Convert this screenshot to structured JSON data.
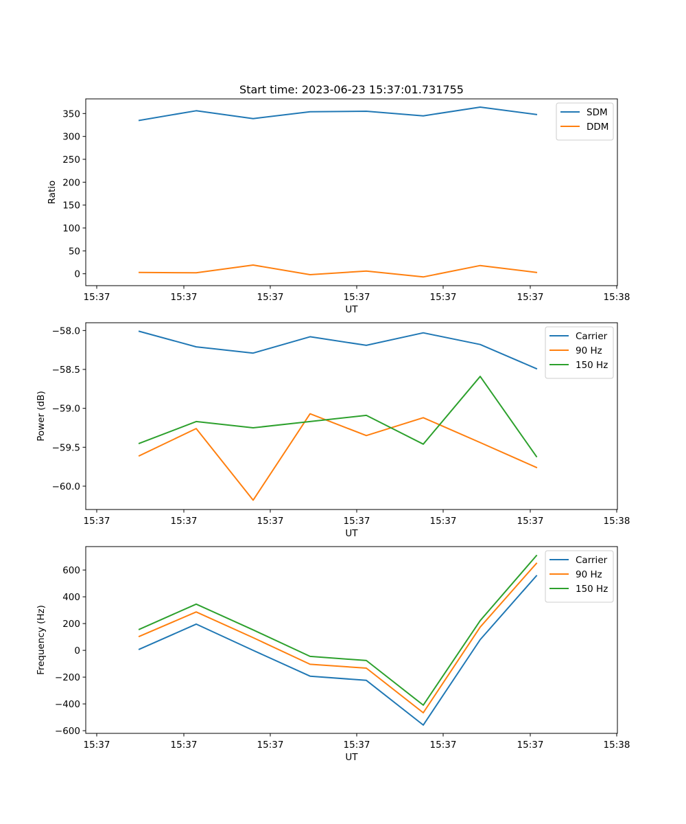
{
  "chart_data": [
    {
      "type": "line",
      "title": "Start time: 2023-06-23 15:37:01.731755",
      "xlabel": "UT",
      "ylabel": "Ratio",
      "x_tick_labels": [
        "15:37",
        "15:37",
        "15:37",
        "15:37",
        "15:37",
        "15:37",
        "15:38"
      ],
      "y_ticks": [
        0,
        50,
        100,
        150,
        200,
        250,
        300,
        350
      ],
      "ylim": [
        -26,
        382
      ],
      "grid": false,
      "legend_position": "upper right",
      "series": [
        {
          "name": "SDM",
          "color": "#1f77b4",
          "values": [
            335,
            356,
            339,
            354,
            355,
            345,
            364,
            348
          ]
        },
        {
          "name": "DDM",
          "color": "#ff7f0e",
          "values": [
            3,
            2,
            19,
            -2,
            6,
            -7,
            18,
            3
          ]
        }
      ]
    },
    {
      "type": "line",
      "title": "",
      "xlabel": "UT",
      "ylabel": "Power (dB)",
      "x_tick_labels": [
        "15:37",
        "15:37",
        "15:37",
        "15:37",
        "15:37",
        "15:37",
        "15:38"
      ],
      "y_ticks": [
        -58.0,
        -58.5,
        -59.0,
        -59.5,
        -60.0
      ],
      "y_tick_labels": [
        "−58.0",
        "−58.5",
        "−59.0",
        "−59.5",
        "−60.0"
      ],
      "ylim": [
        -60.3,
        -57.9
      ],
      "grid": false,
      "legend_position": "upper right",
      "series": [
        {
          "name": "Carrier",
          "color": "#1f77b4",
          "values": [
            -58.01,
            -58.21,
            -58.29,
            -58.08,
            -58.19,
            -58.03,
            -58.18,
            -58.49
          ]
        },
        {
          "name": "90 Hz",
          "color": "#ff7f0e",
          "values": [
            -59.61,
            -59.26,
            -60.18,
            -59.07,
            -59.35,
            -59.12,
            -59.44,
            -59.76
          ]
        },
        {
          "name": "150 Hz",
          "color": "#2ca02c",
          "values": [
            -59.45,
            -59.17,
            -59.25,
            -59.17,
            -59.09,
            -59.46,
            -58.59,
            -59.62
          ]
        }
      ]
    },
    {
      "type": "line",
      "title": "",
      "xlabel": "UT",
      "ylabel": "Frequency (Hz)",
      "x_tick_labels": [
        "15:37",
        "15:37",
        "15:37",
        "15:37",
        "15:37",
        "15:37",
        "15:38"
      ],
      "y_ticks": [
        -600,
        -400,
        -200,
        0,
        200,
        400,
        600
      ],
      "y_tick_labels": [
        "−600",
        "−400",
        "−200",
        "0",
        "200",
        "400",
        "600"
      ],
      "ylim": [
        -620,
        775
      ],
      "grid": false,
      "legend_position": "upper right",
      "series": [
        {
          "name": "Carrier",
          "color": "#1f77b4",
          "values": [
            8,
            196,
            0,
            -193,
            -224,
            -558,
            80,
            557
          ]
        },
        {
          "name": "90 Hz",
          "color": "#ff7f0e",
          "values": [
            104,
            287,
            95,
            -104,
            -133,
            -466,
            174,
            650
          ]
        },
        {
          "name": "150 Hz",
          "color": "#2ca02c",
          "values": [
            157,
            345,
            153,
            -45,
            -76,
            -409,
            222,
            708
          ]
        }
      ]
    }
  ]
}
